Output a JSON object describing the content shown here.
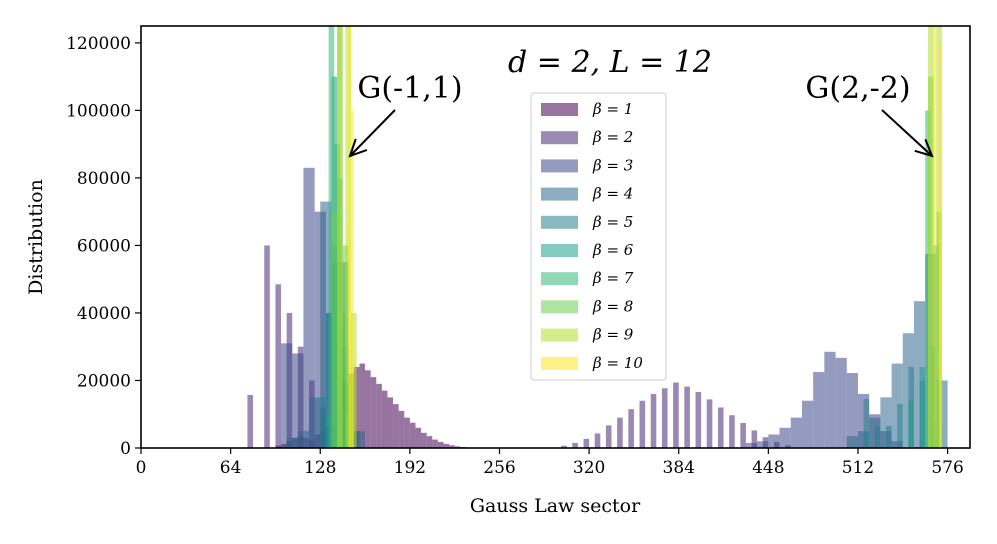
{
  "chart_data": {
    "type": "bar",
    "title": "d = 2,  L = 12",
    "xlabel": "Gauss Law sector",
    "ylabel": "Distribution",
    "xlim": [
      0,
      592
    ],
    "ylim": [
      0,
      125000
    ],
    "xticks": [
      0,
      64,
      128,
      192,
      256,
      320,
      384,
      448,
      512,
      576
    ],
    "yticks": [
      0,
      20000,
      40000,
      60000,
      80000,
      100000,
      120000
    ],
    "legend_position": "center",
    "annotations": [
      {
        "text": "G(-1,1)",
        "points_to": [
          148,
          90000
        ]
      },
      {
        "text": "G(2,-2)",
        "points_to": [
          570,
          90000
        ]
      }
    ],
    "series": [
      {
        "name": "β = 1",
        "color": "#440154",
        "bins": [
          [
            96,
            700
          ],
          [
            100,
            1200
          ],
          [
            104,
            2000
          ],
          [
            108,
            3000
          ],
          [
            112,
            3500
          ],
          [
            116,
            3000
          ],
          [
            120,
            2500
          ],
          [
            124,
            4000
          ],
          [
            128,
            5000
          ],
          [
            132,
            6000
          ],
          [
            136,
            8000
          ],
          [
            140,
            12000
          ],
          [
            144,
            18000
          ],
          [
            148,
            22000
          ],
          [
            152,
            24000
          ],
          [
            156,
            25000
          ],
          [
            160,
            23000
          ],
          [
            164,
            21000
          ],
          [
            168,
            19000
          ],
          [
            172,
            17000
          ],
          [
            176,
            15000
          ],
          [
            180,
            13000
          ],
          [
            184,
            11000
          ],
          [
            188,
            9000
          ],
          [
            192,
            7500
          ],
          [
            196,
            6000
          ],
          [
            200,
            4500
          ],
          [
            204,
            3500
          ],
          [
            208,
            2500
          ],
          [
            212,
            1800
          ],
          [
            216,
            1200
          ],
          [
            220,
            800
          ],
          [
            224,
            500
          ],
          [
            228,
            300
          ],
          [
            232,
            150
          ]
        ]
      },
      {
        "name": "β = 2",
        "color": "#482878",
        "bins": [
          [
            76,
            15700
          ],
          [
            84,
            0
          ],
          [
            88,
            60000
          ],
          [
            96,
            48500
          ],
          [
            104,
            40000
          ],
          [
            112,
            30000
          ],
          [
            120,
            20000
          ],
          [
            128,
            12000
          ],
          [
            136,
            6000
          ],
          [
            144,
            2000
          ],
          [
            300,
            700
          ],
          [
            308,
            1500
          ],
          [
            316,
            2700
          ],
          [
            324,
            4300
          ],
          [
            332,
            6700
          ],
          [
            340,
            9000
          ],
          [
            348,
            11500
          ],
          [
            356,
            14000
          ],
          [
            364,
            16000
          ],
          [
            372,
            17700
          ],
          [
            380,
            19400
          ],
          [
            388,
            18200
          ],
          [
            396,
            16600
          ],
          [
            404,
            14400
          ],
          [
            412,
            12000
          ],
          [
            420,
            9700
          ],
          [
            428,
            7400
          ],
          [
            436,
            5200
          ],
          [
            444,
            3200
          ],
          [
            452,
            1800
          ],
          [
            460,
            800
          ]
        ]
      },
      {
        "name": "β = 3",
        "color": "#3e4989",
        "bins": [
          [
            100,
            31000
          ],
          [
            108,
            28000
          ],
          [
            116,
            83000
          ],
          [
            124,
            70000
          ],
          [
            132,
            40000
          ],
          [
            140,
            20000
          ],
          [
            148,
            5000
          ],
          [
            432,
            1500
          ],
          [
            440,
            2000
          ],
          [
            448,
            4000
          ],
          [
            456,
            6000
          ],
          [
            464,
            9000
          ],
          [
            472,
            14000
          ],
          [
            480,
            22500
          ],
          [
            488,
            28500
          ],
          [
            496,
            26700
          ],
          [
            504,
            22200
          ],
          [
            512,
            16000
          ],
          [
            520,
            10000
          ],
          [
            528,
            5000
          ],
          [
            536,
            2000
          ]
        ]
      },
      {
        "name": "β = 4",
        "color": "#31688e",
        "bins": [
          [
            104,
            3000
          ],
          [
            112,
            5000
          ],
          [
            120,
            15000
          ],
          [
            128,
            73000
          ],
          [
            136,
            55000
          ],
          [
            144,
            20000
          ],
          [
            152,
            5000
          ],
          [
            504,
            3500
          ],
          [
            512,
            5000
          ],
          [
            520,
            9000
          ],
          [
            528,
            15000
          ],
          [
            536,
            25000
          ],
          [
            544,
            34000
          ],
          [
            552,
            43500
          ],
          [
            560,
            57500
          ],
          [
            568,
            20000
          ]
        ]
      },
      {
        "name": "β = 5",
        "color": "#26828e",
        "bins": [
          [
            128,
            15000
          ],
          [
            132,
            40000
          ],
          [
            136,
            60000
          ],
          [
            140,
            35000
          ],
          [
            144,
            55000
          ],
          [
            148,
            20000
          ],
          [
            516,
            14500
          ],
          [
            524,
            6500
          ],
          [
            532,
            6500
          ],
          [
            540,
            13000
          ],
          [
            548,
            24000
          ],
          [
            556,
            20000
          ],
          [
            564,
            8000
          ]
        ]
      },
      {
        "name": "β = 6",
        "color": "#1f9e89",
        "bins": [
          [
            132,
            10000
          ],
          [
            136,
            110000
          ],
          [
            140,
            80000
          ],
          [
            144,
            30000
          ],
          [
            148,
            8000
          ],
          [
            548,
            14000
          ],
          [
            556,
            24000
          ],
          [
            564,
            30000
          ]
        ]
      },
      {
        "name": "β = 7",
        "color": "#35b779",
        "bins": [
          [
            134,
            125000
          ],
          [
            138,
            90000
          ],
          [
            142,
            40000
          ],
          [
            146,
            10000
          ],
          [
            560,
            100000
          ],
          [
            566,
            60000
          ]
        ]
      },
      {
        "name": "β = 8",
        "color": "#6ece58",
        "bins": [
          [
            136,
            70000
          ],
          [
            140,
            125000
          ],
          [
            144,
            60000
          ],
          [
            148,
            20000
          ],
          [
            562,
            110000
          ],
          [
            568,
            70000
          ]
        ]
      },
      {
        "name": "β = 9",
        "color": "#b5de2b",
        "bins": [
          [
            140,
            125000
          ],
          [
            146,
            125000
          ],
          [
            150,
            40000
          ],
          [
            562,
            125000
          ],
          [
            568,
            125000
          ]
        ]
      },
      {
        "name": "β = 10",
        "color": "#fde725",
        "bins": [
          [
            148,
            125000
          ],
          [
            150,
            100000
          ],
          [
            566,
            125000
          ],
          [
            570,
            120000
          ]
        ]
      }
    ]
  }
}
